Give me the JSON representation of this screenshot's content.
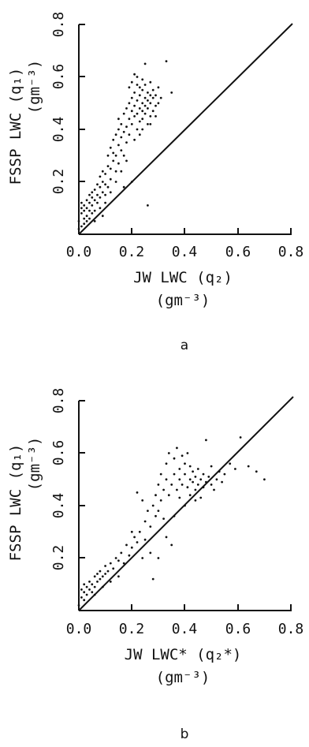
{
  "chart_data": [
    {
      "type": "scatter",
      "panel_label": "a",
      "xlabel_line1": "JW LWC (q₂)",
      "xlabel_line2": "(gm⁻³)",
      "ylabel_line1": "FSSP LWC (q₁)",
      "ylabel_line2": "(gm⁻³)",
      "xlim": [
        0,
        0.8
      ],
      "ylim": [
        0,
        0.8
      ],
      "x_ticks": [
        "0.0",
        "0.2",
        "0.4",
        "0.6",
        "0.8"
      ],
      "y_ticks": [
        "0.2",
        "0.4",
        "0.6",
        "0.8"
      ],
      "reference_line": "1:1",
      "points": [
        [
          0.0,
          0.02
        ],
        [
          0.0,
          0.05
        ],
        [
          0.01,
          0.03
        ],
        [
          0.01,
          0.08
        ],
        [
          0.01,
          0.1
        ],
        [
          0.01,
          0.12
        ],
        [
          0.02,
          0.04
        ],
        [
          0.02,
          0.06
        ],
        [
          0.02,
          0.09
        ],
        [
          0.02,
          0.11
        ],
        [
          0.03,
          0.05
        ],
        [
          0.03,
          0.07
        ],
        [
          0.03,
          0.1
        ],
        [
          0.03,
          0.13
        ],
        [
          0.04,
          0.06
        ],
        [
          0.04,
          0.09
        ],
        [
          0.04,
          0.12
        ],
        [
          0.04,
          0.15
        ],
        [
          0.05,
          0.08
        ],
        [
          0.05,
          0.11
        ],
        [
          0.05,
          0.14
        ],
        [
          0.05,
          0.16
        ],
        [
          0.06,
          0.09
        ],
        [
          0.06,
          0.13
        ],
        [
          0.06,
          0.17
        ],
        [
          0.07,
          0.12
        ],
        [
          0.07,
          0.15
        ],
        [
          0.07,
          0.19
        ],
        [
          0.08,
          0.1
        ],
        [
          0.08,
          0.14
        ],
        [
          0.08,
          0.18
        ],
        [
          0.08,
          0.22
        ],
        [
          0.09,
          0.16
        ],
        [
          0.09,
          0.2
        ],
        [
          0.09,
          0.24
        ],
        [
          0.1,
          0.15
        ],
        [
          0.1,
          0.19
        ],
        [
          0.1,
          0.23
        ],
        [
          0.11,
          0.18
        ],
        [
          0.11,
          0.26
        ],
        [
          0.11,
          0.3
        ],
        [
          0.12,
          0.21
        ],
        [
          0.12,
          0.25
        ],
        [
          0.12,
          0.33
        ],
        [
          0.13,
          0.28
        ],
        [
          0.13,
          0.31
        ],
        [
          0.13,
          0.36
        ],
        [
          0.14,
          0.24
        ],
        [
          0.14,
          0.3
        ],
        [
          0.14,
          0.38
        ],
        [
          0.15,
          0.27
        ],
        [
          0.15,
          0.34
        ],
        [
          0.15,
          0.4
        ],
        [
          0.15,
          0.44
        ],
        [
          0.16,
          0.32
        ],
        [
          0.16,
          0.37
        ],
        [
          0.16,
          0.42
        ],
        [
          0.17,
          0.3
        ],
        [
          0.17,
          0.39
        ],
        [
          0.17,
          0.46
        ],
        [
          0.18,
          0.35
        ],
        [
          0.18,
          0.41
        ],
        [
          0.18,
          0.48
        ],
        [
          0.19,
          0.38
        ],
        [
          0.19,
          0.44
        ],
        [
          0.19,
          0.5
        ],
        [
          0.19,
          0.56
        ],
        [
          0.2,
          0.42
        ],
        [
          0.2,
          0.47
        ],
        [
          0.2,
          0.52
        ],
        [
          0.2,
          0.58
        ],
        [
          0.21,
          0.45
        ],
        [
          0.21,
          0.49
        ],
        [
          0.21,
          0.54
        ],
        [
          0.21,
          0.61
        ],
        [
          0.22,
          0.4
        ],
        [
          0.22,
          0.46
        ],
        [
          0.22,
          0.51
        ],
        [
          0.22,
          0.57
        ],
        [
          0.22,
          0.6
        ],
        [
          0.23,
          0.43
        ],
        [
          0.23,
          0.48
        ],
        [
          0.23,
          0.53
        ],
        [
          0.23,
          0.56
        ],
        [
          0.24,
          0.44
        ],
        [
          0.24,
          0.47
        ],
        [
          0.24,
          0.5
        ],
        [
          0.24,
          0.55
        ],
        [
          0.24,
          0.59
        ],
        [
          0.25,
          0.46
        ],
        [
          0.25,
          0.49
        ],
        [
          0.25,
          0.52
        ],
        [
          0.25,
          0.57
        ],
        [
          0.25,
          0.65
        ],
        [
          0.26,
          0.42
        ],
        [
          0.26,
          0.48
        ],
        [
          0.26,
          0.51
        ],
        [
          0.26,
          0.54
        ],
        [
          0.27,
          0.45
        ],
        [
          0.27,
          0.5
        ],
        [
          0.27,
          0.53
        ],
        [
          0.27,
          0.58
        ],
        [
          0.28,
          0.47
        ],
        [
          0.28,
          0.52
        ],
        [
          0.28,
          0.55
        ],
        [
          0.29,
          0.49
        ],
        [
          0.29,
          0.53
        ],
        [
          0.3,
          0.5
        ],
        [
          0.3,
          0.56
        ],
        [
          0.31,
          0.52
        ],
        [
          0.33,
          0.66
        ],
        [
          0.35,
          0.54
        ],
        [
          0.26,
          0.11
        ],
        [
          0.2,
          0.2
        ],
        [
          0.17,
          0.18
        ],
        [
          0.14,
          0.2
        ],
        [
          0.12,
          0.16
        ],
        [
          0.1,
          0.12
        ],
        [
          0.09,
          0.07
        ],
        [
          0.06,
          0.05
        ],
        [
          0.23,
          0.38
        ],
        [
          0.21,
          0.36
        ],
        [
          0.18,
          0.28
        ],
        [
          0.16,
          0.24
        ],
        [
          0.24,
          0.4
        ],
        [
          0.27,
          0.42
        ],
        [
          0.29,
          0.45
        ]
      ]
    },
    {
      "type": "scatter",
      "panel_label": "b",
      "xlabel_line1": "JW LWC* (q₂*)",
      "xlabel_line2": "(gm⁻³)",
      "ylabel_line1": "FSSP LWC (q₁)",
      "ylabel_line2": "(gm⁻³)",
      "xlim": [
        0,
        0.8
      ],
      "ylim": [
        0,
        0.8
      ],
      "x_ticks": [
        "0.0",
        "0.2",
        "0.4",
        "0.6",
        "0.8"
      ],
      "y_ticks": [
        "0.2",
        "0.4",
        "0.6",
        "0.8"
      ],
      "reference_line": "1:1",
      "points": [
        [
          0.0,
          0.02
        ],
        [
          0.01,
          0.05
        ],
        [
          0.01,
          0.08
        ],
        [
          0.02,
          0.04
        ],
        [
          0.02,
          0.07
        ],
        [
          0.02,
          0.1
        ],
        [
          0.03,
          0.06
        ],
        [
          0.03,
          0.09
        ],
        [
          0.04,
          0.08
        ],
        [
          0.04,
          0.11
        ],
        [
          0.05,
          0.07
        ],
        [
          0.05,
          0.1
        ],
        [
          0.06,
          0.09
        ],
        [
          0.06,
          0.13
        ],
        [
          0.07,
          0.11
        ],
        [
          0.07,
          0.14
        ],
        [
          0.08,
          0.12
        ],
        [
          0.08,
          0.15
        ],
        [
          0.09,
          0.13
        ],
        [
          0.1,
          0.14
        ],
        [
          0.1,
          0.17
        ],
        [
          0.11,
          0.15
        ],
        [
          0.12,
          0.18
        ],
        [
          0.13,
          0.16
        ],
        [
          0.14,
          0.2
        ],
        [
          0.15,
          0.19
        ],
        [
          0.16,
          0.22
        ],
        [
          0.17,
          0.18
        ],
        [
          0.18,
          0.25
        ],
        [
          0.19,
          0.21
        ],
        [
          0.2,
          0.24
        ],
        [
          0.21,
          0.28
        ],
        [
          0.22,
          0.26
        ],
        [
          0.22,
          0.45
        ],
        [
          0.23,
          0.3
        ],
        [
          0.24,
          0.42
        ],
        [
          0.25,
          0.27
        ],
        [
          0.25,
          0.34
        ],
        [
          0.26,
          0.38
        ],
        [
          0.27,
          0.32
        ],
        [
          0.28,
          0.4
        ],
        [
          0.28,
          0.12
        ],
        [
          0.29,
          0.36
        ],
        [
          0.29,
          0.44
        ],
        [
          0.3,
          0.38
        ],
        [
          0.3,
          0.48
        ],
        [
          0.31,
          0.42
        ],
        [
          0.31,
          0.52
        ],
        [
          0.32,
          0.35
        ],
        [
          0.32,
          0.46
        ],
        [
          0.33,
          0.5
        ],
        [
          0.33,
          0.56
        ],
        [
          0.34,
          0.44
        ],
        [
          0.34,
          0.6
        ],
        [
          0.35,
          0.48
        ],
        [
          0.35,
          0.25
        ],
        [
          0.36,
          0.52
        ],
        [
          0.36,
          0.58
        ],
        [
          0.37,
          0.46
        ],
        [
          0.37,
          0.62
        ],
        [
          0.38,
          0.5
        ],
        [
          0.38,
          0.54
        ],
        [
          0.39,
          0.48
        ],
        [
          0.39,
          0.59
        ],
        [
          0.4,
          0.52
        ],
        [
          0.4,
          0.56
        ],
        [
          0.41,
          0.47
        ],
        [
          0.41,
          0.6
        ],
        [
          0.42,
          0.5
        ],
        [
          0.42,
          0.55
        ],
        [
          0.43,
          0.49
        ],
        [
          0.43,
          0.53
        ],
        [
          0.44,
          0.46
        ],
        [
          0.44,
          0.51
        ],
        [
          0.45,
          0.48
        ],
        [
          0.45,
          0.54
        ],
        [
          0.46,
          0.5
        ],
        [
          0.46,
          0.43
        ],
        [
          0.47,
          0.52
        ],
        [
          0.47,
          0.47
        ],
        [
          0.48,
          0.49
        ],
        [
          0.48,
          0.65
        ],
        [
          0.49,
          0.51
        ],
        [
          0.5,
          0.48
        ],
        [
          0.5,
          0.55
        ],
        [
          0.51,
          0.46
        ],
        [
          0.52,
          0.5
        ],
        [
          0.53,
          0.53
        ],
        [
          0.54,
          0.49
        ],
        [
          0.55,
          0.52
        ],
        [
          0.57,
          0.56
        ],
        [
          0.59,
          0.54
        ],
        [
          0.61,
          0.66
        ],
        [
          0.64,
          0.55
        ],
        [
          0.67,
          0.53
        ],
        [
          0.7,
          0.5
        ],
        [
          0.2,
          0.3
        ],
        [
          0.24,
          0.2
        ],
        [
          0.27,
          0.22
        ],
        [
          0.3,
          0.2
        ],
        [
          0.15,
          0.13
        ],
        [
          0.12,
          0.11
        ],
        [
          0.09,
          0.09
        ],
        [
          0.06,
          0.06
        ],
        [
          0.33,
          0.28
        ],
        [
          0.36,
          0.36
        ],
        [
          0.4,
          0.4
        ],
        [
          0.44,
          0.42
        ],
        [
          0.38,
          0.43
        ],
        [
          0.42,
          0.44
        ]
      ]
    }
  ]
}
